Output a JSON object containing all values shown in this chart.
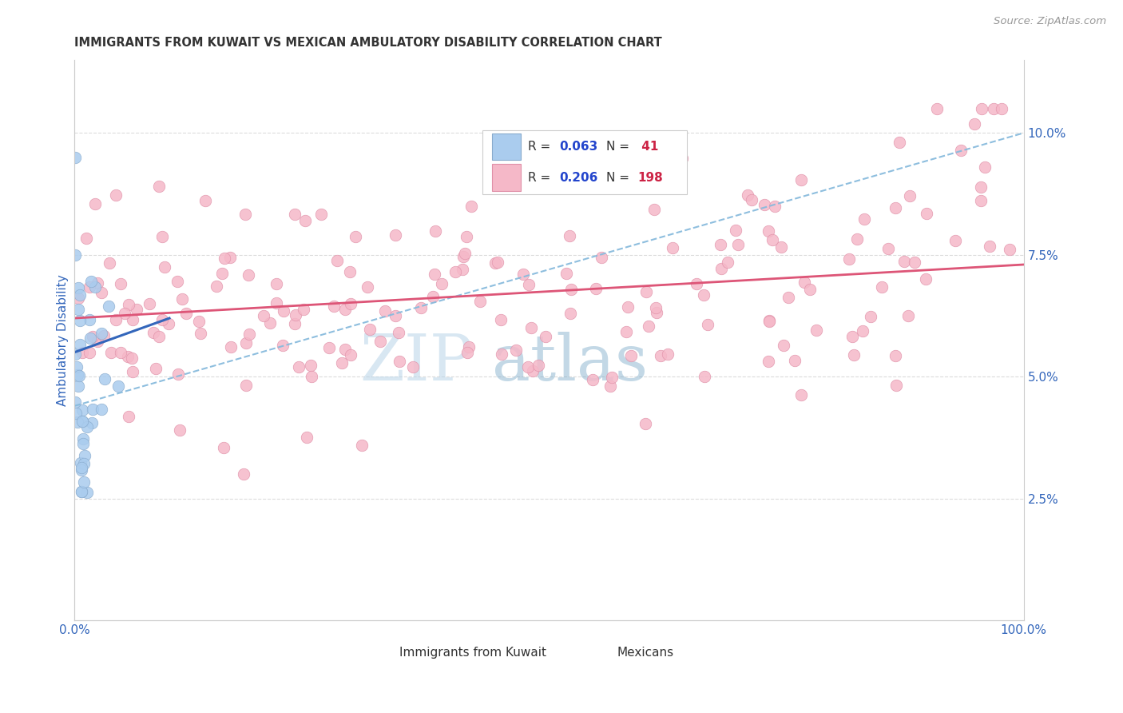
{
  "title": "IMMIGRANTS FROM KUWAIT VS MEXICAN AMBULATORY DISABILITY CORRELATION CHART",
  "source": "Source: ZipAtlas.com",
  "ylabel": "Ambulatory Disability",
  "legend_label_kuwait": "Immigrants from Kuwait",
  "legend_label_mexican": "Mexicans",
  "watermark_zip": "ZIP",
  "watermark_atlas": "atlas",
  "kuwait_color": "#aaccee",
  "kuwait_edge_color": "#88aacc",
  "mexican_color": "#f5b8c8",
  "mexican_edge_color": "#e090a8",
  "kuwait_line_color": "#3366bb",
  "mexican_line_color": "#dd5577",
  "dashed_line_color": "#88bbdd",
  "background_color": "#ffffff",
  "grid_color": "#cccccc",
  "title_color": "#333333",
  "r_value_color": "#2244cc",
  "n_value_color": "#cc2244",
  "axis_tick_color": "#3366bb",
  "ylabel_color": "#3366bb",
  "source_color": "#999999",
  "xlim": [
    0.0,
    1.0
  ],
  "ylim": [
    0.0,
    0.115
  ],
  "yticks": [
    0.025,
    0.05,
    0.075,
    0.1
  ],
  "ytick_labels": [
    "2.5%",
    "5.0%",
    "7.5%",
    "10.0%"
  ]
}
